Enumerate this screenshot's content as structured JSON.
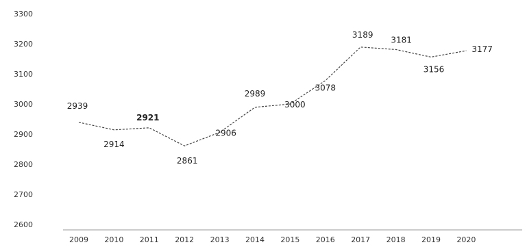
{
  "chart_data": {
    "type": "line",
    "title": "",
    "xlabel": "",
    "ylabel": "",
    "categories": [
      "2009",
      "2010",
      "2011",
      "2012",
      "2013",
      "2014",
      "2015",
      "2016",
      "2017",
      "2018",
      "2019",
      "2020"
    ],
    "series": [
      {
        "values": [
          2939,
          2914,
          2921,
          2861,
          2906,
          2989,
          3000,
          3078,
          3189,
          3181,
          3156,
          3177
        ],
        "data_labels": [
          "2939",
          "2914",
          "2921",
          "2861",
          "2906",
          "2989",
          "3000",
          "3078",
          "3189",
          "3181",
          "3156",
          "3177"
        ],
        "line_color": "#444444",
        "line_style": "dashed"
      }
    ],
    "ylim": [
      2600,
      3300
    ],
    "yticks": [
      2600,
      2700,
      2800,
      2900,
      3000,
      3100,
      3200,
      3300
    ],
    "ytick_labels": [
      "2600",
      "2700",
      "2800",
      "2900",
      "3000",
      "3100",
      "3200",
      "3300"
    ],
    "grid": false,
    "legend": "none",
    "colors": {
      "axis": "#999999",
      "text": "#333333"
    }
  }
}
